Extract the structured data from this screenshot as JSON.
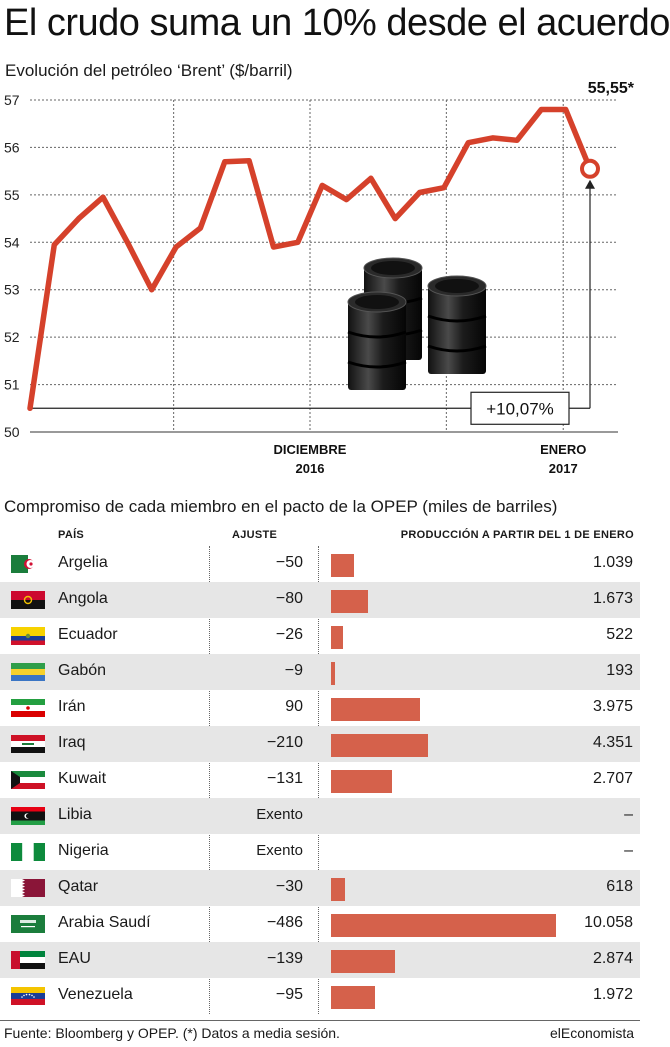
{
  "title": "El crudo suma un 10% desde el acuerdo",
  "subtitle": "Evolución del petróleo ‘Brent’ ($/barril)",
  "chart_data": {
    "type": "line",
    "series": [
      {
        "values": [
          50.5,
          53.95,
          54.5,
          54.95,
          54.0,
          53.0,
          53.9,
          54.3,
          55.7,
          55.72,
          53.9,
          54.0,
          55.2,
          54.9,
          55.35,
          54.5,
          55.05,
          55.15,
          56.1,
          56.2,
          56.15,
          56.8,
          56.8,
          55.55
        ]
      }
    ],
    "ylim": [
      50,
      57
    ],
    "yticks": [
      "50",
      "51",
      "52",
      "53",
      "54",
      "55",
      "56",
      "57"
    ],
    "xtick_labels": [
      {
        "line1": "DICIEMBRE",
        "line2": "2016",
        "index": 11.5
      },
      {
        "line1": "ENERO",
        "line2": "2017",
        "index": 21.9
      }
    ],
    "vertical_grid_indices": [
      5.9,
      11.5,
      17.1,
      21.9
    ],
    "last_value_label": "55,55*",
    "change_label": "+10,07%",
    "grid": "dotted",
    "line_color": "#d5412b"
  },
  "table": {
    "title": "Compromiso de cada miembro en el pacto de la OPEP (miles de barriles)",
    "headers": {
      "country": "PAÍS",
      "adjustment": "AJUSTE",
      "production": "PRODUCCIÓN A PARTIR DEL 1 DE ENERO"
    },
    "bar_color": "#d5614b",
    "bar_max_value": 10058,
    "rows": [
      {
        "country": "Argelia",
        "flag": "algeria-flag",
        "adjustment": "−50",
        "production": 1039,
        "production_label": "1.039"
      },
      {
        "country": "Angola",
        "flag": "angola-flag",
        "adjustment": "−80",
        "production": 1673,
        "production_label": "1.673"
      },
      {
        "country": "Ecuador",
        "flag": "ecuador-flag",
        "adjustment": "−26",
        "production": 522,
        "production_label": "522"
      },
      {
        "country": "Gabón",
        "flag": "gabon-flag",
        "adjustment": "−9",
        "production": 193,
        "production_label": "193"
      },
      {
        "country": "Irán",
        "flag": "iran-flag",
        "adjustment": "90",
        "production": 3975,
        "production_label": "3.975"
      },
      {
        "country": "Iraq",
        "flag": "iraq-flag",
        "adjustment": "−210",
        "production": 4351,
        "production_label": "4.351"
      },
      {
        "country": "Kuwait",
        "flag": "kuwait-flag",
        "adjustment": "−131",
        "production": 2707,
        "production_label": "2.707"
      },
      {
        "country": "Libia",
        "flag": "libya-flag",
        "adjustment": "Exento",
        "production": null,
        "production_label": "–"
      },
      {
        "country": "Nigeria",
        "flag": "nigeria-flag",
        "adjustment": "Exento",
        "production": null,
        "production_label": "–"
      },
      {
        "country": "Qatar",
        "flag": "qatar-flag",
        "adjustment": "−30",
        "production": 618,
        "production_label": "618"
      },
      {
        "country": "Arabia Saudí",
        "flag": "saudi-arabia-flag",
        "adjustment": "−486",
        "production": 10058,
        "production_label": "10.058"
      },
      {
        "country": "EAU",
        "flag": "uae-flag",
        "adjustment": "−139",
        "production": 2874,
        "production_label": "2.874"
      },
      {
        "country": "Venezuela",
        "flag": "venezuela-flag",
        "adjustment": "−95",
        "production": 1972,
        "production_label": "1.972"
      }
    ]
  },
  "footer": {
    "source": "Fuente: Bloomberg y OPEP. (*) Datos a media sesión.",
    "brand": "elEconomista"
  }
}
